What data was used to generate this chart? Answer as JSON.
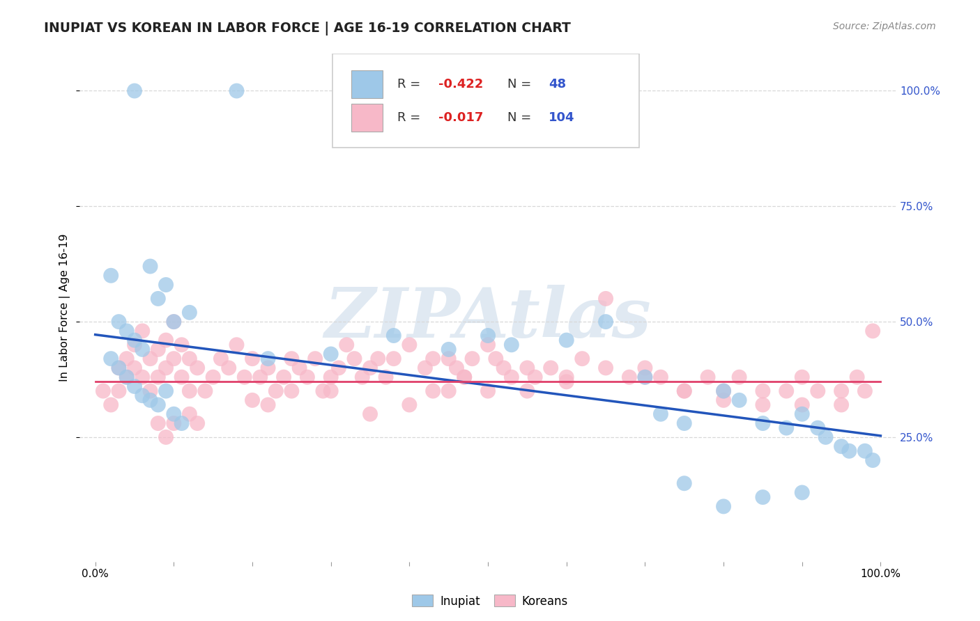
{
  "title": "INUPIAT VS KOREAN IN LABOR FORCE | AGE 16-19 CORRELATION CHART",
  "source_text": "Source: ZipAtlas.com",
  "ylabel": "In Labor Force | Age 16-19",
  "xlim": [
    -0.02,
    1.02
  ],
  "ylim": [
    -0.02,
    1.08
  ],
  "y_ticks_right": [
    0.25,
    0.5,
    0.75,
    1.0
  ],
  "y_tick_labels_right": [
    "25.0%",
    "50.0%",
    "75.0%",
    "100.0%"
  ],
  "inupiat_color": "#9ec8e8",
  "korean_color": "#f7b8c8",
  "inupiat_line_color": "#2255bb",
  "korean_line_color": "#e0406a",
  "background_color": "#ffffff",
  "grid_color": "#d8d8d8",
  "R_inupiat": -0.422,
  "N_inupiat": 48,
  "R_korean": -0.017,
  "N_korean": 104,
  "legend_R_color": "#dd2222",
  "legend_N_color": "#3355cc",
  "inupiat_line_y0": 0.472,
  "inupiat_line_y1": 0.253,
  "korean_line_y0": 0.37,
  "korean_line_y1": 0.37,
  "inupiat_x": [
    0.05,
    0.18,
    0.02,
    0.07,
    0.03,
    0.04,
    0.05,
    0.06,
    0.02,
    0.03,
    0.04,
    0.05,
    0.06,
    0.07,
    0.08,
    0.09,
    0.1,
    0.12,
    0.1,
    0.11,
    0.08,
    0.09,
    0.22,
    0.3,
    0.38,
    0.45,
    0.5,
    0.53,
    0.6,
    0.65,
    0.7,
    0.72,
    0.75,
    0.8,
    0.82,
    0.85,
    0.88,
    0.9,
    0.92,
    0.93,
    0.95,
    0.96,
    0.98,
    0.99,
    0.8,
    0.85,
    0.9,
    0.75
  ],
  "inupiat_y": [
    1.0,
    1.0,
    0.6,
    0.62,
    0.5,
    0.48,
    0.46,
    0.44,
    0.42,
    0.4,
    0.38,
    0.36,
    0.34,
    0.33,
    0.55,
    0.58,
    0.5,
    0.52,
    0.3,
    0.28,
    0.32,
    0.35,
    0.42,
    0.43,
    0.47,
    0.44,
    0.47,
    0.45,
    0.46,
    0.5,
    0.38,
    0.3,
    0.28,
    0.35,
    0.33,
    0.28,
    0.27,
    0.3,
    0.27,
    0.25,
    0.23,
    0.22,
    0.22,
    0.2,
    0.1,
    0.12,
    0.13,
    0.15
  ],
  "korean_x": [
    0.01,
    0.02,
    0.03,
    0.03,
    0.04,
    0.04,
    0.05,
    0.05,
    0.06,
    0.06,
    0.07,
    0.07,
    0.08,
    0.08,
    0.09,
    0.09,
    0.1,
    0.1,
    0.11,
    0.11,
    0.12,
    0.12,
    0.13,
    0.14,
    0.15,
    0.16,
    0.17,
    0.18,
    0.19,
    0.2,
    0.21,
    0.22,
    0.23,
    0.24,
    0.25,
    0.26,
    0.27,
    0.28,
    0.29,
    0.3,
    0.31,
    0.32,
    0.33,
    0.34,
    0.35,
    0.36,
    0.37,
    0.38,
    0.4,
    0.42,
    0.43,
    0.45,
    0.46,
    0.47,
    0.48,
    0.5,
    0.51,
    0.52,
    0.53,
    0.55,
    0.56,
    0.58,
    0.6,
    0.62,
    0.65,
    0.68,
    0.7,
    0.72,
    0.75,
    0.78,
    0.8,
    0.82,
    0.85,
    0.88,
    0.9,
    0.92,
    0.95,
    0.97,
    0.98,
    0.99,
    0.45,
    0.47,
    0.5,
    0.55,
    0.6,
    0.08,
    0.09,
    0.1,
    0.12,
    0.13,
    0.2,
    0.22,
    0.25,
    0.3,
    0.35,
    0.4,
    0.43,
    0.65,
    0.7,
    0.75,
    0.8,
    0.85,
    0.9,
    0.95
  ],
  "korean_y": [
    0.35,
    0.32,
    0.4,
    0.35,
    0.42,
    0.38,
    0.45,
    0.4,
    0.48,
    0.38,
    0.42,
    0.35,
    0.44,
    0.38,
    0.46,
    0.4,
    0.5,
    0.42,
    0.45,
    0.38,
    0.42,
    0.35,
    0.4,
    0.35,
    0.38,
    0.42,
    0.4,
    0.45,
    0.38,
    0.42,
    0.38,
    0.4,
    0.35,
    0.38,
    0.42,
    0.4,
    0.38,
    0.42,
    0.35,
    0.38,
    0.4,
    0.45,
    0.42,
    0.38,
    0.4,
    0.42,
    0.38,
    0.42,
    0.45,
    0.4,
    0.42,
    0.42,
    0.4,
    0.38,
    0.42,
    0.45,
    0.42,
    0.4,
    0.38,
    0.4,
    0.38,
    0.4,
    0.38,
    0.42,
    0.55,
    0.38,
    0.4,
    0.38,
    0.35,
    0.38,
    0.35,
    0.38,
    0.35,
    0.35,
    0.38,
    0.35,
    0.35,
    0.38,
    0.35,
    0.48,
    0.35,
    0.38,
    0.35,
    0.35,
    0.37,
    0.28,
    0.25,
    0.28,
    0.3,
    0.28,
    0.33,
    0.32,
    0.35,
    0.35,
    0.3,
    0.32,
    0.35,
    0.4,
    0.38,
    0.35,
    0.33,
    0.32,
    0.32,
    0.32
  ]
}
